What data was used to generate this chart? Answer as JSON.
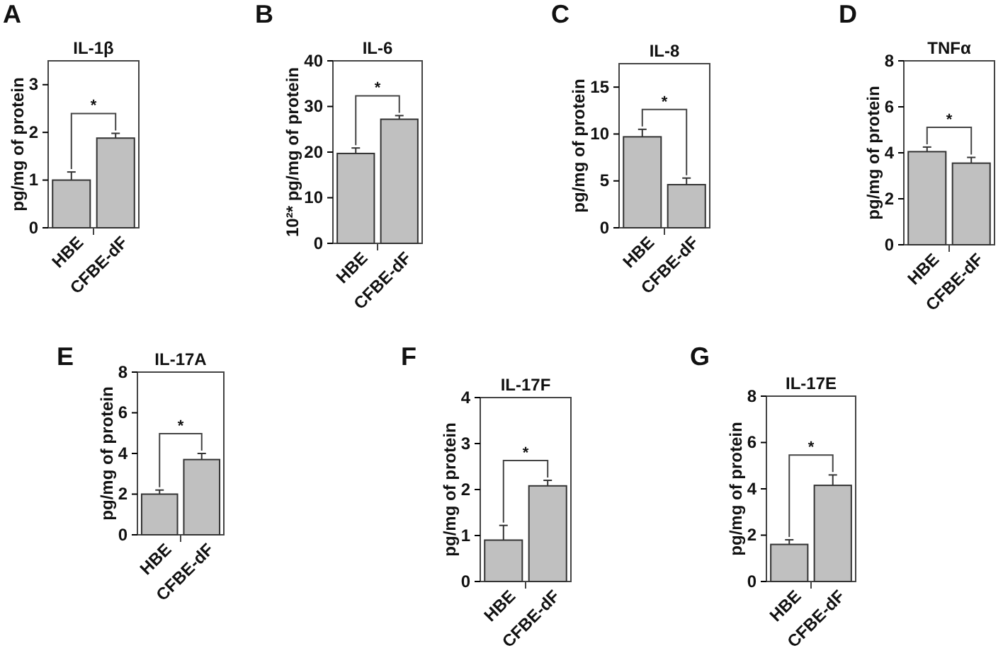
{
  "chart_data": [
    {
      "type": "bar",
      "title": "IL-1β",
      "ylabel": "pg/mg of protein",
      "categories": [
        "HBE",
        "CFBE-dF"
      ],
      "values": [
        1.0,
        1.88
      ],
      "errors": [
        0.17,
        0.1
      ],
      "color": "#c0c0c0",
      "ylim": [
        0,
        3.5
      ],
      "yticks": [
        0,
        1,
        2,
        3
      ],
      "annotations": [
        "A",
        "*"
      ]
    },
    {
      "type": "bar",
      "title": "IL-6",
      "ylabel": "10²* pg/mg of protein",
      "categories": [
        "HBE",
        "CFBE-dF"
      ],
      "values": [
        19.7,
        27.2
      ],
      "errors": [
        1.2,
        0.8
      ],
      "color": "#c0c0c0",
      "ylim": [
        0,
        40
      ],
      "yticks": [
        0,
        10,
        20,
        30,
        40
      ],
      "annotations": [
        "B",
        "*"
      ]
    },
    {
      "type": "bar",
      "title": "IL-8",
      "ylabel": "pg/mg of protein",
      "categories": [
        "HBE",
        "CFBE-dF"
      ],
      "values": [
        9.7,
        4.6
      ],
      "errors": [
        0.8,
        0.7
      ],
      "color": "#c0c0c0",
      "ylim": [
        0,
        17.5
      ],
      "yticks": [
        0,
        5,
        10,
        15
      ],
      "annotations": [
        "C",
        "*"
      ]
    },
    {
      "type": "bar",
      "title": "TNFα",
      "ylabel": "pg/mg of protein",
      "categories": [
        "HBE",
        "CFBE-dF"
      ],
      "values": [
        4.05,
        3.55
      ],
      "errors": [
        0.2,
        0.25
      ],
      "color": "#c0c0c0",
      "ylim": [
        0,
        8
      ],
      "yticks": [
        0,
        2,
        4,
        6,
        8
      ],
      "annotations": [
        "D",
        "*"
      ]
    },
    {
      "type": "bar",
      "title": "IL-17A",
      "ylabel": "pg/mg of protein",
      "categories": [
        "HBE",
        "CFBE-dF"
      ],
      "values": [
        2.0,
        3.7
      ],
      "errors": [
        0.2,
        0.3
      ],
      "color": "#c0c0c0",
      "ylim": [
        0,
        8
      ],
      "yticks": [
        0,
        2,
        4,
        6,
        8
      ],
      "annotations": [
        "E",
        "*"
      ]
    },
    {
      "type": "bar",
      "title": "IL-17F",
      "ylabel": "pg/mg of protein",
      "categories": [
        "HBE",
        "CFBE-dF"
      ],
      "values": [
        0.9,
        2.08
      ],
      "errors": [
        0.32,
        0.12
      ],
      "color": "#c0c0c0",
      "ylim": [
        0,
        4
      ],
      "yticks": [
        0,
        1,
        2,
        3,
        4
      ],
      "annotations": [
        "F",
        "*"
      ]
    },
    {
      "type": "bar",
      "title": "IL-17E",
      "ylabel": "pg/mg of protein",
      "categories": [
        "HBE",
        "CFBE-dF"
      ],
      "values": [
        1.6,
        4.15
      ],
      "errors": [
        0.2,
        0.45
      ],
      "color": "#c0c0c0",
      "ylim": [
        0,
        8
      ],
      "yticks": [
        0,
        2,
        4,
        6,
        8
      ],
      "annotations": [
        "G",
        "*"
      ]
    }
  ]
}
